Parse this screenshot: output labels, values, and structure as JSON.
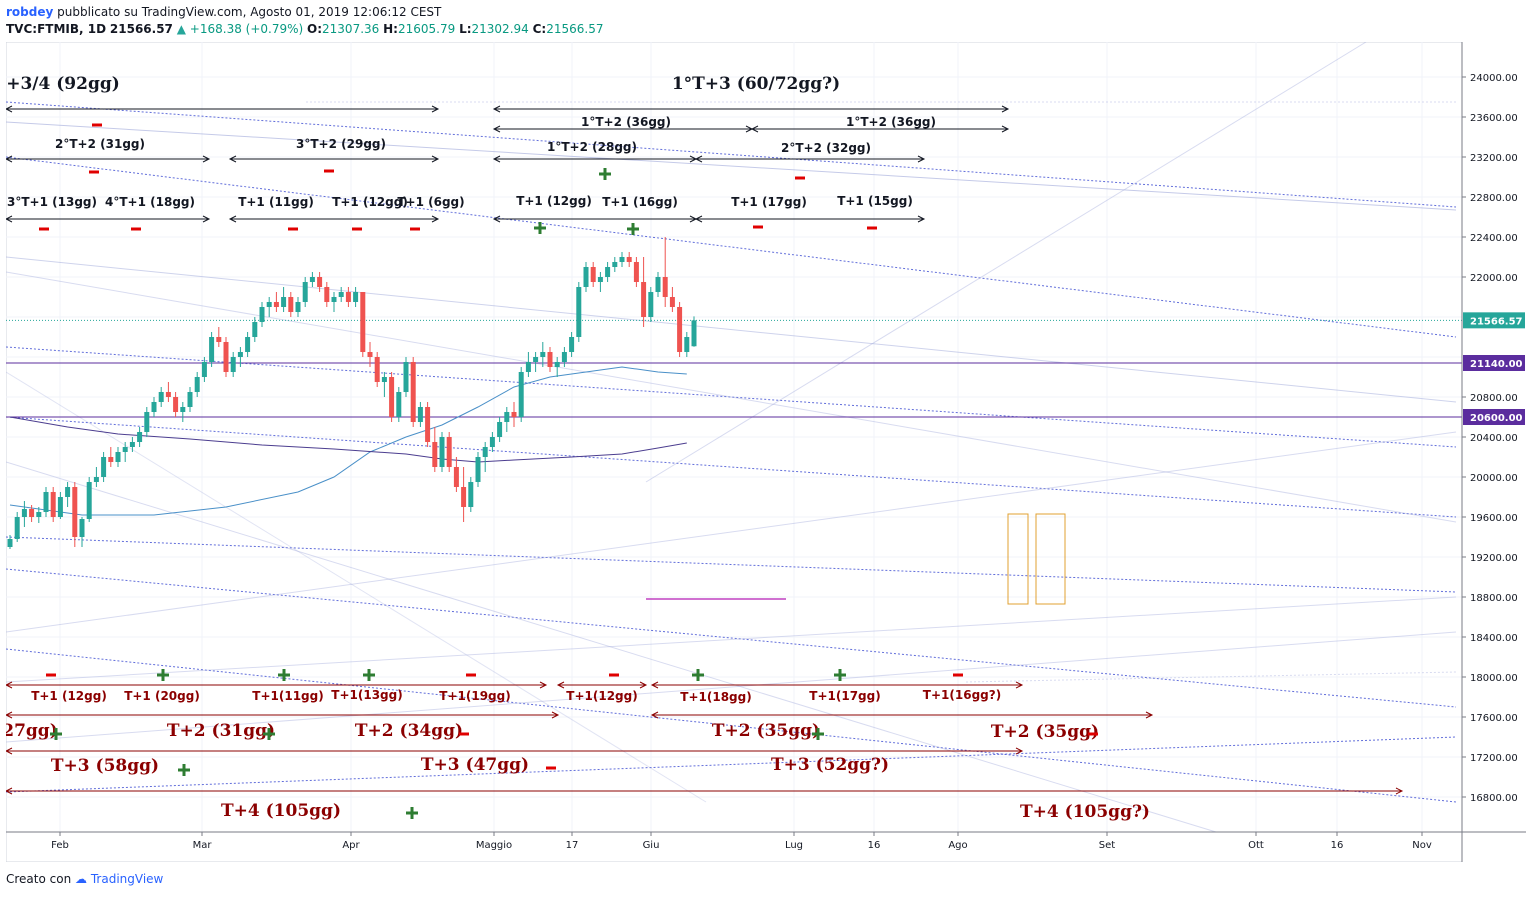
{
  "header": {
    "author": "robdey",
    "published": "pubblicato su TradingView.com, Agosto 01, 2019 12:06:12 CEST",
    "symbol": "TVC:FTMIB, 1D",
    "last": "21566.57",
    "change": "+168.38 (+0.79%)",
    "o_label": "O:",
    "o_val": "21307.36",
    "h_label": "H:",
    "h_val": "21605.79",
    "l_label": "L:",
    "l_val": "21302.94",
    "c_label": "C:",
    "c_val": "21566.57"
  },
  "footer": {
    "created_with": "Creato con",
    "brand": "TradingView"
  },
  "colors": {
    "up": "#26a69a",
    "down": "#ef5350",
    "ma_fast": "#4a90c8",
    "ma_slow": "#4b3d8f",
    "hline": "#5b2d9e",
    "annotation_red": "#8b0000",
    "plus_green": "#2e7d32",
    "minus_red": "#e00000"
  },
  "chart_data": {
    "type": "candlestick",
    "x_axis_labels": [
      "Feb",
      "Mar",
      "Apr",
      "Maggio",
      "17",
      "Giu",
      "Lug",
      "16",
      "Ago",
      "Set",
      "Ott",
      "16",
      "Nov"
    ],
    "y_ticks": [
      24000,
      23600,
      23200,
      22800,
      22400,
      22000,
      21600,
      21200,
      20800,
      20400,
      20000,
      19600,
      19200,
      18800,
      18400,
      18000,
      17600,
      17200,
      16800
    ],
    "y_tick_labels": [
      "24000.00",
      "23600.00",
      "23200.00",
      "22800.00",
      "22400.00",
      "22000.00",
      "",
      "",
      "20800.00",
      "20400.00",
      "20000.00",
      "19600.00",
      "19200.00",
      "18800.00",
      "18400.00",
      "18000.00",
      "17600.00",
      "17200.00",
      "16800.00"
    ],
    "ylim": [
      16450,
      24350
    ],
    "price_tags": [
      {
        "value": 21566.57,
        "label": "21566.57",
        "color": "#26a69a"
      },
      {
        "value": 21140,
        "label": "21140.00",
        "color": "#5b2d9e"
      },
      {
        "value": 20600,
        "label": "20600.00",
        "color": "#5b2d9e"
      }
    ],
    "horizontal_lines": [
      21140,
      20600
    ],
    "candles": [
      [
        19300,
        19420,
        19280,
        19380
      ],
      [
        19380,
        19650,
        19350,
        19600
      ],
      [
        19600,
        19760,
        19500,
        19680
      ],
      [
        19680,
        19720,
        19550,
        19600
      ],
      [
        19600,
        19700,
        19540,
        19650
      ],
      [
        19650,
        19900,
        19600,
        19850
      ],
      [
        19850,
        19900,
        19550,
        19600
      ],
      [
        19600,
        19850,
        19580,
        19800
      ],
      [
        19800,
        19950,
        19700,
        19900
      ],
      [
        19900,
        19950,
        19300,
        19400
      ],
      [
        19400,
        19600,
        19300,
        19580
      ],
      [
        19580,
        20000,
        19550,
        19950
      ],
      [
        19950,
        20100,
        19900,
        20000
      ],
      [
        20000,
        20250,
        19950,
        20200
      ],
      [
        20200,
        20300,
        20100,
        20150
      ],
      [
        20150,
        20300,
        20100,
        20250
      ],
      [
        20250,
        20350,
        20150,
        20300
      ],
      [
        20300,
        20400,
        20250,
        20350
      ],
      [
        20350,
        20500,
        20300,
        20450
      ],
      [
        20450,
        20700,
        20400,
        20650
      ],
      [
        20650,
        20800,
        20600,
        20750
      ],
      [
        20750,
        20900,
        20700,
        20850
      ],
      [
        20850,
        20950,
        20750,
        20800
      ],
      [
        20800,
        20850,
        20600,
        20650
      ],
      [
        20650,
        20750,
        20550,
        20700
      ],
      [
        20700,
        20900,
        20650,
        20850
      ],
      [
        20850,
        21050,
        20800,
        21000
      ],
      [
        21000,
        21200,
        20950,
        21150
      ],
      [
        21150,
        21450,
        21100,
        21400
      ],
      [
        21400,
        21500,
        21300,
        21350
      ],
      [
        21350,
        21400,
        21000,
        21050
      ],
      [
        21050,
        21250,
        21000,
        21200
      ],
      [
        21200,
        21300,
        21100,
        21250
      ],
      [
        21250,
        21450,
        21200,
        21400
      ],
      [
        21400,
        21600,
        21350,
        21550
      ],
      [
        21550,
        21750,
        21500,
        21700
      ],
      [
        21700,
        21800,
        21600,
        21750
      ],
      [
        21750,
        21850,
        21650,
        21700
      ],
      [
        21700,
        21900,
        21650,
        21800
      ],
      [
        21800,
        21850,
        21600,
        21650
      ],
      [
        21650,
        21800,
        21600,
        21750
      ],
      [
        21750,
        22000,
        21700,
        21950
      ],
      [
        21950,
        22050,
        21900,
        22000
      ],
      [
        22000,
        22050,
        21850,
        21900
      ],
      [
        21900,
        21950,
        21700,
        21750
      ],
      [
        21750,
        21850,
        21650,
        21800
      ],
      [
        21800,
        21900,
        21750,
        21850
      ],
      [
        21850,
        21900,
        21700,
        21750
      ],
      [
        21750,
        21900,
        21700,
        21850
      ],
      [
        21850,
        21800,
        21200,
        21250
      ],
      [
        21250,
        21350,
        21100,
        21200
      ],
      [
        21200,
        21250,
        20900,
        20950
      ],
      [
        20950,
        21050,
        20800,
        21000
      ],
      [
        21000,
        21050,
        20550,
        20600
      ],
      [
        20600,
        20900,
        20550,
        20850
      ],
      [
        20850,
        21200,
        20800,
        21150
      ],
      [
        21150,
        21200,
        20500,
        20550
      ],
      [
        20550,
        20750,
        20500,
        20700
      ],
      [
        20700,
        20750,
        20300,
        20350
      ],
      [
        20350,
        20500,
        20050,
        20100
      ],
      [
        20100,
        20450,
        20050,
        20400
      ],
      [
        20400,
        20450,
        20050,
        20100
      ],
      [
        20100,
        20200,
        19850,
        19900
      ],
      [
        19900,
        20100,
        19550,
        19700
      ],
      [
        19700,
        20000,
        19650,
        19950
      ],
      [
        19950,
        20250,
        19900,
        20200
      ],
      [
        20200,
        20350,
        20050,
        20300
      ],
      [
        20300,
        20450,
        20250,
        20400
      ],
      [
        20400,
        20600,
        20350,
        20550
      ],
      [
        20550,
        20700,
        20450,
        20650
      ],
      [
        20650,
        20750,
        20500,
        20600
      ],
      [
        20600,
        21100,
        20550,
        21050
      ],
      [
        21050,
        21250,
        21000,
        21150
      ],
      [
        21150,
        21250,
        21050,
        21200
      ],
      [
        21200,
        21350,
        21100,
        21250
      ],
      [
        21250,
        21300,
        21050,
        21100
      ],
      [
        21100,
        21200,
        21000,
        21150
      ],
      [
        21150,
        21300,
        21100,
        21250
      ],
      [
        21250,
        21450,
        21200,
        21400
      ],
      [
        21400,
        21950,
        21350,
        21900
      ],
      [
        21900,
        22150,
        21850,
        22100
      ],
      [
        22100,
        22150,
        21900,
        21950
      ],
      [
        21950,
        22050,
        21850,
        22000
      ],
      [
        22000,
        22150,
        21950,
        22100
      ],
      [
        22100,
        22200,
        22050,
        22150
      ],
      [
        22150,
        22250,
        22100,
        22200
      ],
      [
        22200,
        22250,
        22100,
        22150
      ],
      [
        22150,
        22200,
        21900,
        21950
      ],
      [
        21950,
        22200,
        21500,
        21600
      ],
      [
        21600,
        21900,
        21550,
        21850
      ],
      [
        21850,
        22050,
        21800,
        22000
      ],
      [
        22000,
        22400,
        21700,
        21800
      ],
      [
        21800,
        21900,
        21650,
        21700
      ],
      [
        21700,
        21750,
        21200,
        21250
      ],
      [
        21250,
        21450,
        21200,
        21400
      ],
      [
        21307.36,
        21605.79,
        21302.94,
        21566.57
      ]
    ],
    "ma_fast": [
      [
        0,
        19720
      ],
      [
        10,
        19620
      ],
      [
        20,
        19620
      ],
      [
        30,
        19700
      ],
      [
        40,
        19850
      ],
      [
        45,
        20000
      ],
      [
        50,
        20250
      ],
      [
        55,
        20400
      ],
      [
        60,
        20520
      ],
      [
        65,
        20700
      ],
      [
        70,
        20900
      ],
      [
        75,
        21000
      ],
      [
        80,
        21050
      ],
      [
        85,
        21100
      ],
      [
        90,
        21050
      ],
      [
        94,
        21030
      ]
    ],
    "ma_slow": [
      [
        0,
        20600
      ],
      [
        8,
        20500
      ],
      [
        15,
        20430
      ],
      [
        25,
        20380
      ],
      [
        35,
        20320
      ],
      [
        45,
        20280
      ],
      [
        55,
        20230
      ],
      [
        60,
        20180
      ],
      [
        65,
        20150
      ],
      [
        70,
        20170
      ],
      [
        78,
        20200
      ],
      [
        85,
        20230
      ],
      [
        90,
        20290
      ],
      [
        94,
        20340
      ]
    ],
    "cycle_labels_top": [
      {
        "text": "+3/4 (92gg)",
        "big": true
      },
      {
        "text": "1°T+3 (60/72gg?)",
        "big": true
      },
      {
        "text": "1°T+2 (36gg)"
      },
      {
        "text": "1°T+2 (36gg)"
      },
      {
        "text": "2°T+2 (31gg)"
      },
      {
        "text": "3°T+2 (29gg)"
      },
      {
        "text": "1°T+2 (28gg)"
      },
      {
        "text": "2°T+2 (32gg)"
      },
      {
        "text": "3°T+1 (13gg)"
      },
      {
        "text": "4°T+1 (18gg)"
      },
      {
        "text": "T+1 (11gg)"
      },
      {
        "text": "T+1 (12gg)"
      },
      {
        "text": "T+1 (6gg)"
      },
      {
        "text": "T+1 (12gg)"
      },
      {
        "text": "T+1 (16gg)"
      },
      {
        "text": "T+1 (17gg)"
      },
      {
        "text": "T+1 (15gg)"
      }
    ],
    "cycle_labels_bottom": [
      {
        "text": "T+1 (12gg)"
      },
      {
        "text": "T+1 (20gg)"
      },
      {
        "text": "T+1(11gg)"
      },
      {
        "text": "T+1(13gg)"
      },
      {
        "text": "T+1(19gg)"
      },
      {
        "text": "T+1(12gg)"
      },
      {
        "text": "T+1(18gg)"
      },
      {
        "text": "T+1(17gg)"
      },
      {
        "text": "T+1(16gg?)"
      },
      {
        "text": "27gg)"
      },
      {
        "text": "T+2 (31gg)"
      },
      {
        "text": "T+2 (34gg)"
      },
      {
        "text": "T+2 (35gg)"
      },
      {
        "text": "T+2 (35gg)"
      },
      {
        "text": "T+3 (58gg)"
      },
      {
        "text": "T+3 (47gg)"
      },
      {
        "text": "T+3 (52gg?)"
      },
      {
        "text": "T+4 (105gg)"
      },
      {
        "text": "T+4 (105gg?)"
      }
    ]
  }
}
